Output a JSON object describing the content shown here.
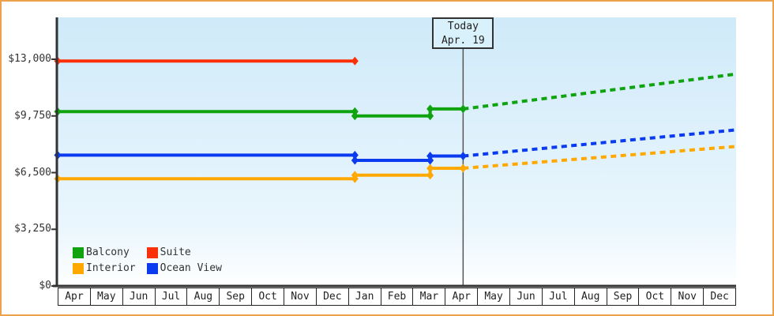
{
  "widget": {
    "frame_border_color": "#EBA24B",
    "outer_background": "#FFFFFF"
  },
  "chart_data": {
    "type": "line",
    "title": "",
    "xlabel": "",
    "ylabel": "",
    "currency": "USD",
    "plot_background_top": "#CFEAF9",
    "plot_background_bottom": "#FEFFFF",
    "axis_color": "#333333",
    "grid": false,
    "x_categories": [
      "Apr",
      "May",
      "Jun",
      "Jul",
      "Aug",
      "Sep",
      "Oct",
      "Nov",
      "Dec",
      "Jan",
      "Feb",
      "Mar",
      "Apr",
      "May",
      "Jun",
      "Jul",
      "Aug",
      "Sep",
      "Oct",
      "Nov",
      "Dec"
    ],
    "y_ticks": [
      {
        "label": "$13,000",
        "value": 13000
      },
      {
        "label": "$9,750",
        "value": 9750
      },
      {
        "label": "$6,500",
        "value": 6500
      },
      {
        "label": "$3,250",
        "value": 3250
      },
      {
        "label": "$0",
        "value": 0
      }
    ],
    "ylim": [
      0,
      15400
    ],
    "today": {
      "line1": "Today",
      "line2": "Apr. 19",
      "t": 12.55
    },
    "series": [
      {
        "name": "Balcony",
        "color": "#0FA30F",
        "solid": [
          [
            0,
            10000
          ],
          [
            9.2,
            10000
          ],
          [
            9.2,
            9750
          ],
          [
            11.53,
            9750
          ],
          [
            11.53,
            10150
          ],
          [
            12.55,
            10150
          ]
        ],
        "dashed": [
          [
            12.55,
            10150
          ],
          [
            21,
            12150
          ]
        ]
      },
      {
        "name": "Suite",
        "color": "#FC3006",
        "solid": [
          [
            0,
            12900
          ],
          [
            9.2,
            12900
          ]
        ],
        "dashed": null
      },
      {
        "name": "Interior",
        "color": "#FFA800",
        "solid": [
          [
            0,
            6150
          ],
          [
            9.2,
            6150
          ],
          [
            9.2,
            6350
          ],
          [
            11.53,
            6350
          ],
          [
            11.53,
            6750
          ],
          [
            12.55,
            6750
          ]
        ],
        "dashed": [
          [
            12.55,
            6750
          ],
          [
            21,
            8000
          ]
        ]
      },
      {
        "name": "Ocean View",
        "color": "#0A3BEE",
        "solid": [
          [
            0,
            7500
          ],
          [
            9.2,
            7500
          ],
          [
            9.2,
            7200
          ],
          [
            11.53,
            7200
          ],
          [
            11.53,
            7450
          ],
          [
            12.55,
            7450
          ]
        ],
        "dashed": [
          [
            12.55,
            7450
          ],
          [
            21,
            8950
          ]
        ]
      }
    ],
    "legend": {
      "position": "bottom-left",
      "order": [
        "Balcony",
        "Suite",
        "Interior",
        "Ocean View"
      ]
    }
  }
}
